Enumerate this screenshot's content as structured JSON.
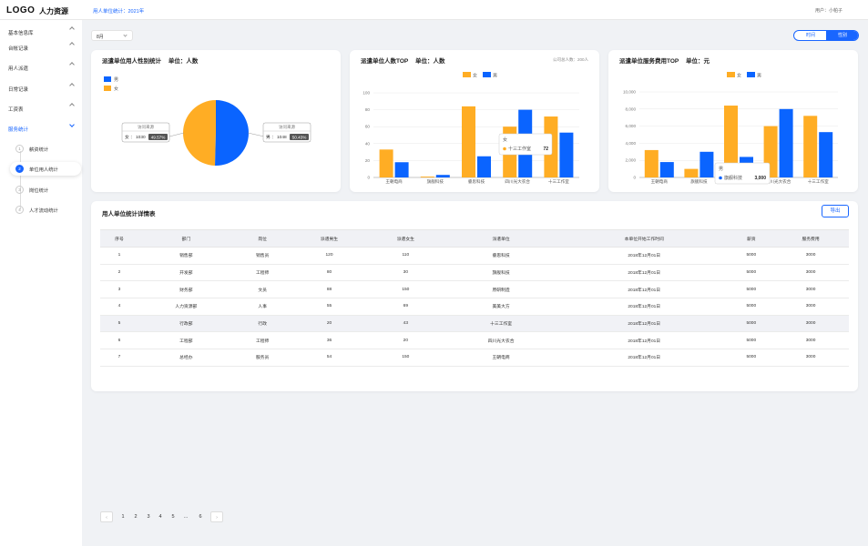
{
  "header": {
    "logo": "LOGO",
    "app_name": "人力资源",
    "breadcrumb": "用人单位统计：2021年",
    "user": "用户：小帕子"
  },
  "sidebar": {
    "items": [
      {
        "label": "基本信息库"
      },
      {
        "label": "台帐记录"
      },
      {
        "label": "用人派遣"
      },
      {
        "label": "日常记录"
      },
      {
        "label": "工资表"
      },
      {
        "label": "服务统计"
      }
    ],
    "sub_items": [
      {
        "num": "1",
        "label": "薪资统计"
      },
      {
        "num": "2",
        "label": "单位用人统计"
      },
      {
        "num": "3",
        "label": "岗位统计"
      },
      {
        "num": "4",
        "label": "人才流动统计"
      }
    ]
  },
  "filters": {
    "month": "8月",
    "toggle": [
      "时间",
      "性别"
    ],
    "active_toggle": "性别"
  },
  "colors": {
    "accent": "#1966ff",
    "female": "#ffad24",
    "male": "#0a64ff"
  },
  "chart_data": [
    {
      "type": "pie",
      "title": "派遣单位用人性别统计",
      "unit": "单位：人数",
      "legend": [
        "男",
        "女"
      ],
      "slices": [
        {
          "label": "女",
          "value": 1030,
          "percent": "49.57%",
          "caption": "访问来源"
        },
        {
          "label": "男",
          "value": 1048,
          "percent": "50.43%",
          "caption": "访问来源"
        }
      ]
    },
    {
      "type": "bar",
      "title": "派遣单位人数TOP",
      "unit": "单位：人数",
      "note": "公司总人数：200人",
      "categories": [
        "王朝电商",
        "旗舰科技",
        "睿思科技",
        "四川光大农合",
        "十三工作室"
      ],
      "series": [
        {
          "name": "女",
          "values": [
            33,
            1,
            84,
            60,
            72
          ]
        },
        {
          "name": "男",
          "values": [
            18,
            3,
            25,
            80,
            53
          ]
        }
      ],
      "ylim": [
        0,
        100
      ],
      "yticks": [
        "0",
        "20",
        "40",
        "60",
        "80",
        "100"
      ],
      "tooltip": {
        "title": "女",
        "label": "十三工作室",
        "value": "72"
      }
    },
    {
      "type": "bar",
      "title": "派遣单位服务费用TOP",
      "unit": "单位：元",
      "categories": [
        "王朝电商",
        "旗舰科技",
        "睿思科技",
        "四川光大农合",
        "十三工作室"
      ],
      "series": [
        {
          "name": "女",
          "values": [
            3200,
            1000,
            8400,
            6000,
            7200
          ]
        },
        {
          "name": "男",
          "values": [
            1800,
            3000,
            2400,
            8000,
            5300
          ]
        }
      ],
      "ylim": [
        0,
        10000
      ],
      "yticks": [
        "0",
        "2,000",
        "4,000",
        "6,000",
        "8,000",
        "10,000"
      ],
      "tooltip": {
        "title": "男",
        "label": "旗舰科技",
        "value": "3,000"
      }
    }
  ],
  "table": {
    "title": "用人单位统计详情表",
    "export_label": "导出",
    "columns": [
      "序号",
      "部门",
      "岗位",
      "派遣男生",
      "派遣女生",
      "派遣单位",
      "本单位开始工作时间",
      "薪资",
      "服务费用"
    ],
    "rows": [
      [
        "1",
        "销售部",
        "销售员",
        "120",
        "110",
        "睿思科技",
        "2018年12月01日",
        "5000",
        "3000"
      ],
      [
        "2",
        "开发部",
        "工程师",
        "80",
        "30",
        "旗舰科技",
        "2018年12月01日",
        "5000",
        "3000"
      ],
      [
        "3",
        "财务部",
        "文员",
        "88",
        "150",
        "原研制造",
        "2018年12月01日",
        "5000",
        "3000"
      ],
      [
        "4",
        "人力资源部",
        "人事",
        "55",
        "69",
        "美美大方",
        "2018年12月01日",
        "5000",
        "3000"
      ],
      [
        "5",
        "行政部",
        "行政",
        "20",
        "43",
        "十三工作室",
        "2018年12月01日",
        "5000",
        "3000"
      ],
      [
        "6",
        "工程部",
        "工程师",
        "36",
        "20",
        "四川光大农合",
        "2018年12月01日",
        "5000",
        "3000"
      ],
      [
        "7",
        "总经办",
        "服务员",
        "54",
        "150",
        "王朝电商",
        "2018年12月01日",
        "5000",
        "3000"
      ]
    ]
  },
  "pagination": {
    "prev": "‹",
    "pages": [
      "1",
      "2",
      "3",
      "4",
      "5",
      "...",
      "6"
    ],
    "next": "›"
  }
}
